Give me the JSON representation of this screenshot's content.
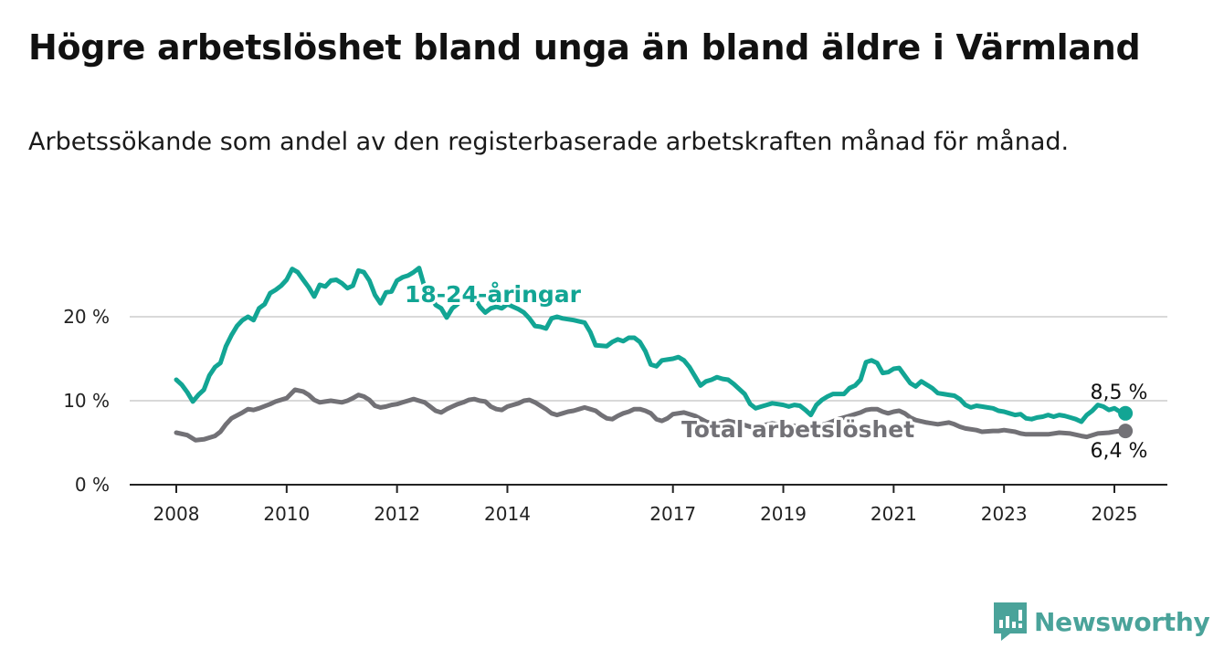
{
  "title": "Högre arbetslöshet bland unga än bland äldre i Värmland",
  "subtitle": "Arbetssökande som andel av den registerbaserade arbetskraften månad för månad.",
  "brand": {
    "name": "Newsworthy",
    "color": "#4aa39a"
  },
  "chart_data": {
    "type": "line",
    "x_ticks": [
      2008,
      2010,
      2012,
      2014,
      2017,
      2019,
      2021,
      2023,
      2025
    ],
    "y_ticks": [
      0,
      10,
      20
    ],
    "y_tick_labels": [
      "0 %",
      "10 %",
      "20 %"
    ],
    "xlim": [
      2007.55,
      2025.95
    ],
    "ylim": [
      0,
      21.5
    ],
    "grid": "horizontal",
    "series": [
      {
        "name": "18-24-åringar",
        "color": "#12a594",
        "end_label": "8,5 %",
        "points": [
          [
            2008.0,
            12.5
          ],
          [
            2008.1,
            11.9
          ],
          [
            2008.2,
            11.0
          ],
          [
            2008.3,
            9.9
          ],
          [
            2008.4,
            10.7
          ],
          [
            2008.5,
            11.3
          ],
          [
            2008.6,
            13.0
          ],
          [
            2008.7,
            14.0
          ],
          [
            2008.8,
            14.5
          ],
          [
            2008.9,
            16.5
          ],
          [
            2009.0,
            17.8
          ],
          [
            2009.1,
            18.9
          ],
          [
            2009.2,
            19.6
          ],
          [
            2009.3,
            20.0
          ],
          [
            2009.4,
            19.6
          ],
          [
            2009.5,
            21.0
          ],
          [
            2009.6,
            21.5
          ],
          [
            2009.7,
            22.8
          ],
          [
            2009.8,
            23.2
          ],
          [
            2009.9,
            23.7
          ],
          [
            2010.0,
            24.4
          ],
          [
            2010.1,
            25.7
          ],
          [
            2010.2,
            25.3
          ],
          [
            2010.3,
            24.4
          ],
          [
            2010.4,
            23.5
          ],
          [
            2010.5,
            22.4
          ],
          [
            2010.6,
            23.8
          ],
          [
            2010.7,
            23.6
          ],
          [
            2010.8,
            24.3
          ],
          [
            2010.9,
            24.4
          ],
          [
            2011.0,
            24.0
          ],
          [
            2011.1,
            23.4
          ],
          [
            2011.2,
            23.7
          ],
          [
            2011.3,
            25.5
          ],
          [
            2011.4,
            25.3
          ],
          [
            2011.5,
            24.3
          ],
          [
            2011.6,
            22.6
          ],
          [
            2011.7,
            21.6
          ],
          [
            2011.8,
            22.9
          ],
          [
            2011.9,
            23.0
          ],
          [
            2012.0,
            24.3
          ],
          [
            2012.1,
            24.7
          ],
          [
            2012.2,
            24.9
          ],
          [
            2012.3,
            25.3
          ],
          [
            2012.4,
            25.8
          ],
          [
            2012.5,
            23.5
          ],
          [
            2012.6,
            22.6
          ],
          [
            2012.7,
            21.4
          ],
          [
            2012.8,
            21.0
          ],
          [
            2012.9,
            19.9
          ],
          [
            2013.0,
            21.0
          ],
          [
            2013.1,
            21.5
          ],
          [
            2013.2,
            22.7
          ],
          [
            2013.3,
            22.6
          ],
          [
            2013.4,
            22.3
          ],
          [
            2013.5,
            21.2
          ],
          [
            2013.6,
            20.5
          ],
          [
            2013.7,
            21.0
          ],
          [
            2013.8,
            21.2
          ],
          [
            2013.9,
            21.0
          ],
          [
            2014.0,
            21.5
          ],
          [
            2014.1,
            21.2
          ],
          [
            2014.2,
            20.9
          ],
          [
            2014.3,
            20.5
          ],
          [
            2014.4,
            19.8
          ],
          [
            2014.5,
            18.9
          ],
          [
            2014.6,
            18.8
          ],
          [
            2014.7,
            18.6
          ],
          [
            2014.8,
            19.8
          ],
          [
            2014.9,
            20.0
          ],
          [
            2015.0,
            19.8
          ],
          [
            2015.2,
            19.6
          ],
          [
            2015.4,
            19.3
          ],
          [
            2015.5,
            18.2
          ],
          [
            2015.6,
            16.6
          ],
          [
            2015.8,
            16.5
          ],
          [
            2015.9,
            17.0
          ],
          [
            2016.0,
            17.3
          ],
          [
            2016.1,
            17.1
          ],
          [
            2016.2,
            17.5
          ],
          [
            2016.3,
            17.5
          ],
          [
            2016.4,
            17.0
          ],
          [
            2016.5,
            15.9
          ],
          [
            2016.6,
            14.3
          ],
          [
            2016.7,
            14.1
          ],
          [
            2016.8,
            14.8
          ],
          [
            2016.9,
            14.9
          ],
          [
            2017.0,
            15.0
          ],
          [
            2017.1,
            15.2
          ],
          [
            2017.2,
            14.8
          ],
          [
            2017.3,
            14.0
          ],
          [
            2017.4,
            12.9
          ],
          [
            2017.5,
            11.8
          ],
          [
            2017.6,
            12.3
          ],
          [
            2017.7,
            12.5
          ],
          [
            2017.8,
            12.8
          ],
          [
            2017.9,
            12.6
          ],
          [
            2018.0,
            12.5
          ],
          [
            2018.1,
            12.0
          ],
          [
            2018.2,
            11.4
          ],
          [
            2018.3,
            10.8
          ],
          [
            2018.4,
            9.6
          ],
          [
            2018.5,
            9.1
          ],
          [
            2018.6,
            9.3
          ],
          [
            2018.7,
            9.5
          ],
          [
            2018.8,
            9.7
          ],
          [
            2018.9,
            9.6
          ],
          [
            2019.0,
            9.5
          ],
          [
            2019.1,
            9.3
          ],
          [
            2019.2,
            9.5
          ],
          [
            2019.3,
            9.4
          ],
          [
            2019.4,
            8.9
          ],
          [
            2019.5,
            8.3
          ],
          [
            2019.6,
            9.5
          ],
          [
            2019.7,
            10.1
          ],
          [
            2019.8,
            10.5
          ],
          [
            2019.9,
            10.8
          ],
          [
            2020.0,
            10.8
          ],
          [
            2020.1,
            10.8
          ],
          [
            2020.2,
            11.5
          ],
          [
            2020.3,
            11.8
          ],
          [
            2020.4,
            12.5
          ],
          [
            2020.5,
            14.6
          ],
          [
            2020.6,
            14.8
          ],
          [
            2020.7,
            14.5
          ],
          [
            2020.8,
            13.3
          ],
          [
            2020.9,
            13.4
          ],
          [
            2021.0,
            13.8
          ],
          [
            2021.1,
            13.9
          ],
          [
            2021.2,
            13.0
          ],
          [
            2021.3,
            12.1
          ],
          [
            2021.4,
            11.7
          ],
          [
            2021.5,
            12.3
          ],
          [
            2021.6,
            11.9
          ],
          [
            2021.7,
            11.5
          ],
          [
            2021.8,
            10.9
          ],
          [
            2021.9,
            10.8
          ],
          [
            2022.0,
            10.7
          ],
          [
            2022.1,
            10.6
          ],
          [
            2022.2,
            10.2
          ],
          [
            2022.3,
            9.5
          ],
          [
            2022.4,
            9.2
          ],
          [
            2022.5,
            9.4
          ],
          [
            2022.6,
            9.3
          ],
          [
            2022.7,
            9.2
          ],
          [
            2022.8,
            9.1
          ],
          [
            2022.9,
            8.8
          ],
          [
            2023.0,
            8.7
          ],
          [
            2023.1,
            8.5
          ],
          [
            2023.2,
            8.3
          ],
          [
            2023.3,
            8.4
          ],
          [
            2023.4,
            7.9
          ],
          [
            2023.5,
            7.8
          ],
          [
            2023.6,
            8.0
          ],
          [
            2023.7,
            8.1
          ],
          [
            2023.8,
            8.3
          ],
          [
            2023.9,
            8.1
          ],
          [
            2024.0,
            8.3
          ],
          [
            2024.1,
            8.2
          ],
          [
            2024.2,
            8.0
          ],
          [
            2024.3,
            7.8
          ],
          [
            2024.4,
            7.5
          ],
          [
            2024.5,
            8.3
          ],
          [
            2024.6,
            8.8
          ],
          [
            2024.7,
            9.5
          ],
          [
            2024.8,
            9.3
          ],
          [
            2024.9,
            8.9
          ],
          [
            2025.0,
            9.1
          ],
          [
            2025.1,
            8.7
          ],
          [
            2025.2,
            8.5
          ]
        ]
      },
      {
        "name": "Total arbetslöshet",
        "color": "#727176",
        "end_label": "6,4 %",
        "points": [
          [
            2008.0,
            6.2
          ],
          [
            2008.2,
            5.9
          ],
          [
            2008.35,
            5.3
          ],
          [
            2008.5,
            5.4
          ],
          [
            2008.6,
            5.6
          ],
          [
            2008.7,
            5.8
          ],
          [
            2008.8,
            6.3
          ],
          [
            2008.9,
            7.2
          ],
          [
            2009.0,
            7.9
          ],
          [
            2009.2,
            8.6
          ],
          [
            2009.3,
            9.0
          ],
          [
            2009.4,
            8.9
          ],
          [
            2009.5,
            9.1
          ],
          [
            2009.7,
            9.6
          ],
          [
            2009.8,
            9.9
          ],
          [
            2010.0,
            10.3
          ],
          [
            2010.15,
            11.3
          ],
          [
            2010.3,
            11.1
          ],
          [
            2010.4,
            10.7
          ],
          [
            2010.5,
            10.1
          ],
          [
            2010.6,
            9.8
          ],
          [
            2010.7,
            9.9
          ],
          [
            2010.8,
            10.0
          ],
          [
            2011.0,
            9.8
          ],
          [
            2011.1,
            10.0
          ],
          [
            2011.2,
            10.3
          ],
          [
            2011.3,
            10.7
          ],
          [
            2011.4,
            10.5
          ],
          [
            2011.5,
            10.1
          ],
          [
            2011.6,
            9.4
          ],
          [
            2011.7,
            9.2
          ],
          [
            2011.8,
            9.3
          ],
          [
            2011.9,
            9.5
          ],
          [
            2012.0,
            9.6
          ],
          [
            2012.1,
            9.8
          ],
          [
            2012.2,
            10.0
          ],
          [
            2012.3,
            10.2
          ],
          [
            2012.4,
            10.0
          ],
          [
            2012.5,
            9.8
          ],
          [
            2012.6,
            9.3
          ],
          [
            2012.7,
            8.8
          ],
          [
            2012.8,
            8.6
          ],
          [
            2012.9,
            9.0
          ],
          [
            2013.0,
            9.3
          ],
          [
            2013.1,
            9.6
          ],
          [
            2013.2,
            9.8
          ],
          [
            2013.3,
            10.1
          ],
          [
            2013.4,
            10.2
          ],
          [
            2013.5,
            10.0
          ],
          [
            2013.6,
            9.9
          ],
          [
            2013.7,
            9.3
          ],
          [
            2013.8,
            9.0
          ],
          [
            2013.9,
            8.9
          ],
          [
            2014.0,
            9.3
          ],
          [
            2014.1,
            9.5
          ],
          [
            2014.2,
            9.7
          ],
          [
            2014.3,
            10.0
          ],
          [
            2014.4,
            10.1
          ],
          [
            2014.5,
            9.8
          ],
          [
            2014.6,
            9.4
          ],
          [
            2014.7,
            9.0
          ],
          [
            2014.8,
            8.5
          ],
          [
            2014.9,
            8.3
          ],
          [
            2015.0,
            8.5
          ],
          [
            2015.1,
            8.7
          ],
          [
            2015.2,
            8.8
          ],
          [
            2015.3,
            9.0
          ],
          [
            2015.4,
            9.2
          ],
          [
            2015.5,
            9.0
          ],
          [
            2015.6,
            8.8
          ],
          [
            2015.7,
            8.3
          ],
          [
            2015.8,
            7.9
          ],
          [
            2015.9,
            7.8
          ],
          [
            2016.0,
            8.2
          ],
          [
            2016.1,
            8.5
          ],
          [
            2016.2,
            8.7
          ],
          [
            2016.3,
            9.0
          ],
          [
            2016.4,
            9.0
          ],
          [
            2016.5,
            8.8
          ],
          [
            2016.6,
            8.5
          ],
          [
            2016.7,
            7.8
          ],
          [
            2016.8,
            7.6
          ],
          [
            2016.9,
            7.9
          ],
          [
            2017.0,
            8.4
          ],
          [
            2017.2,
            8.6
          ],
          [
            2017.4,
            8.2
          ],
          [
            2017.6,
            7.5
          ],
          [
            2017.8,
            7.2
          ],
          [
            2018.0,
            7.6
          ],
          [
            2018.2,
            7.3
          ],
          [
            2018.4,
            6.9
          ],
          [
            2018.6,
            7.0
          ],
          [
            2018.8,
            7.3
          ],
          [
            2019.0,
            7.1
          ],
          [
            2019.2,
            7.0
          ],
          [
            2019.4,
            6.7
          ],
          [
            2019.6,
            6.9
          ],
          [
            2019.8,
            7.3
          ],
          [
            2020.0,
            7.8
          ],
          [
            2020.2,
            8.2
          ],
          [
            2020.4,
            8.6
          ],
          [
            2020.5,
            8.9
          ],
          [
            2020.6,
            9.0
          ],
          [
            2020.7,
            9.0
          ],
          [
            2020.8,
            8.7
          ],
          [
            2020.9,
            8.5
          ],
          [
            2021.0,
            8.7
          ],
          [
            2021.1,
            8.8
          ],
          [
            2021.2,
            8.5
          ],
          [
            2021.3,
            8.0
          ],
          [
            2021.4,
            7.7
          ],
          [
            2021.6,
            7.4
          ],
          [
            2021.8,
            7.2
          ],
          [
            2022.0,
            7.4
          ],
          [
            2022.1,
            7.2
          ],
          [
            2022.2,
            6.9
          ],
          [
            2022.3,
            6.7
          ],
          [
            2022.5,
            6.5
          ],
          [
            2022.6,
            6.3
          ],
          [
            2022.8,
            6.4
          ],
          [
            2022.9,
            6.4
          ],
          [
            2023.0,
            6.5
          ],
          [
            2023.2,
            6.3
          ],
          [
            2023.3,
            6.1
          ],
          [
            2023.4,
            6.0
          ],
          [
            2023.6,
            6.0
          ],
          [
            2023.8,
            6.0
          ],
          [
            2024.0,
            6.2
          ],
          [
            2024.2,
            6.1
          ],
          [
            2024.4,
            5.8
          ],
          [
            2024.5,
            5.7
          ],
          [
            2024.7,
            6.1
          ],
          [
            2024.9,
            6.2
          ],
          [
            2025.0,
            6.3
          ],
          [
            2025.1,
            6.4
          ],
          [
            2025.2,
            6.4
          ]
        ]
      }
    ]
  }
}
